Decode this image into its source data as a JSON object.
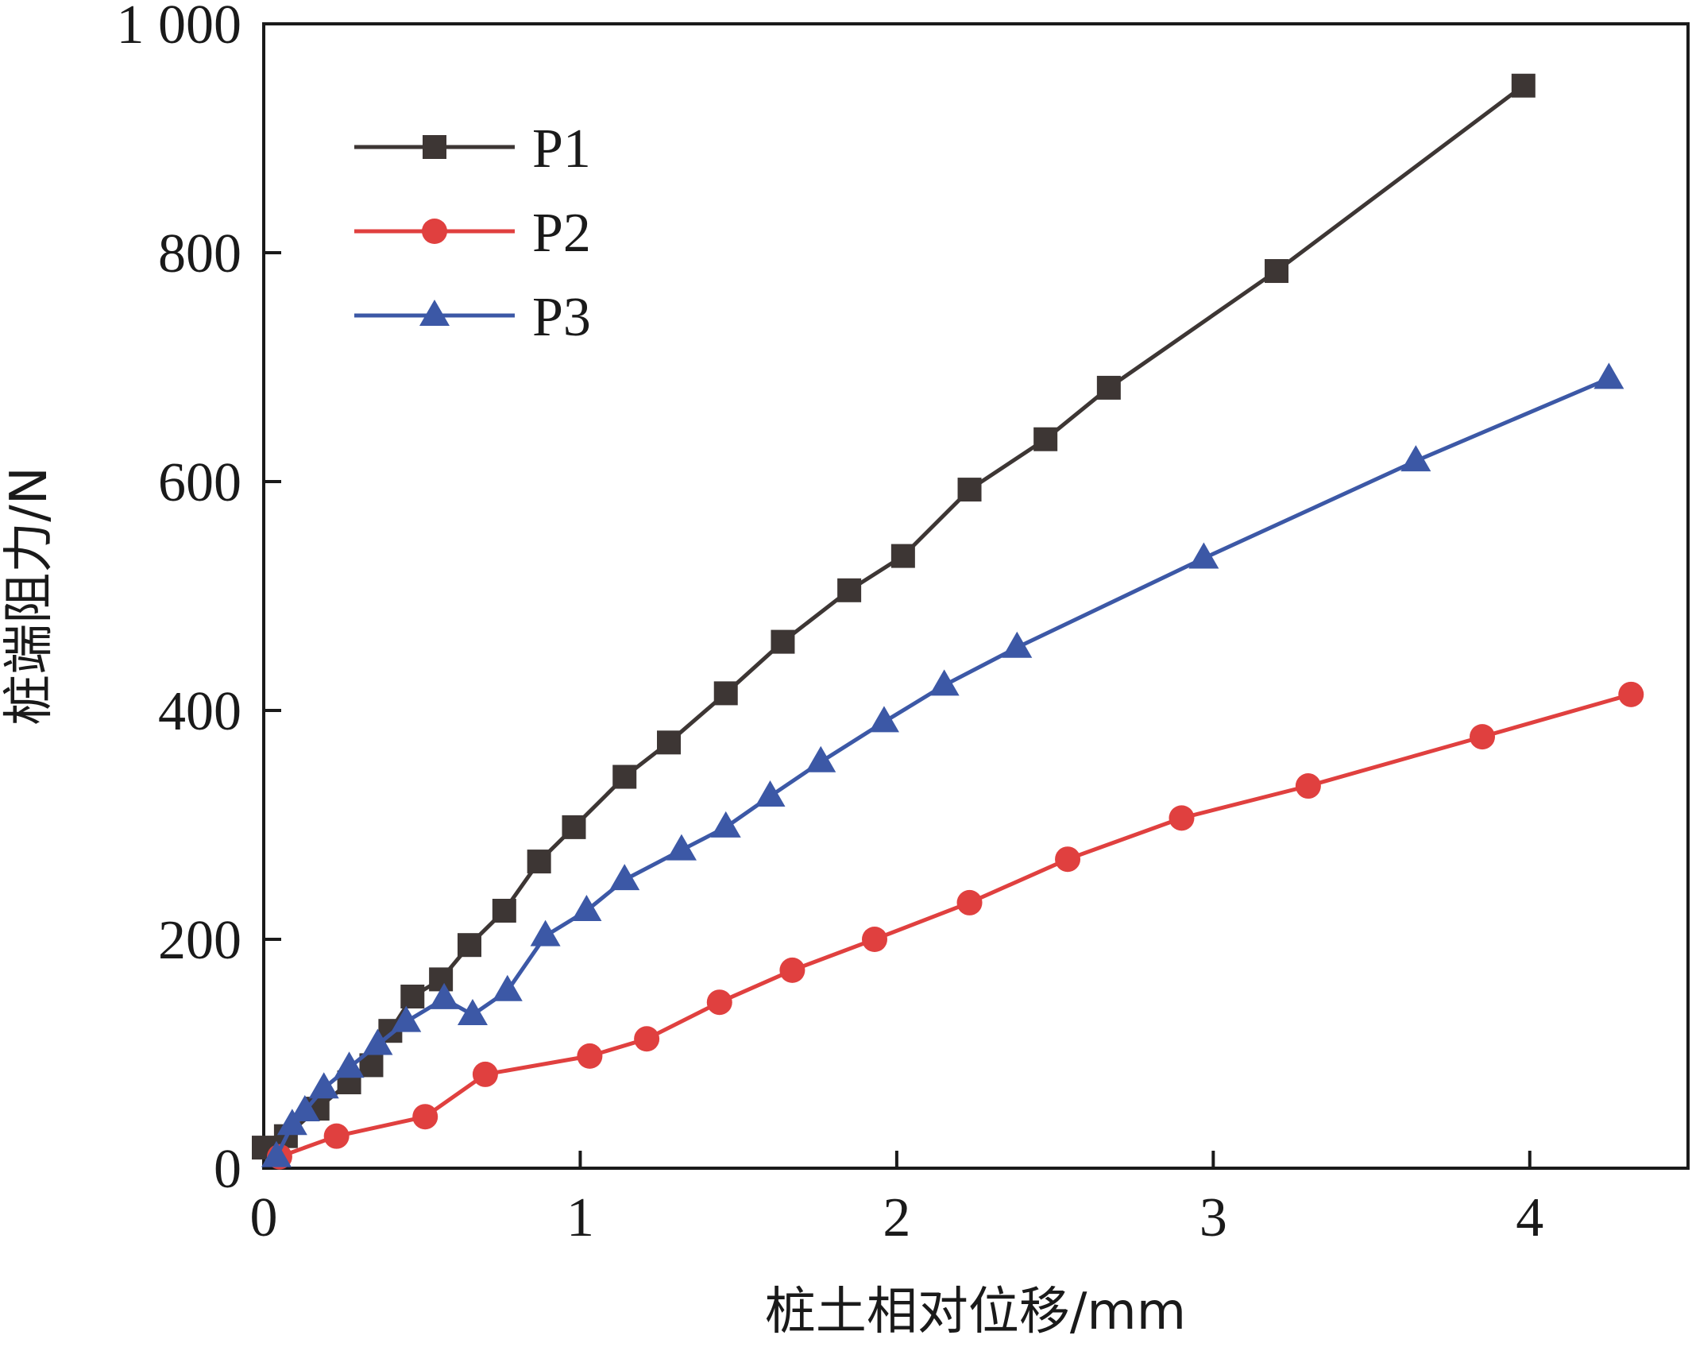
{
  "chart_data": {
    "type": "line",
    "title": "",
    "xlabel": "桩土相对位移/mm",
    "ylabel": "桩端阻力/N",
    "xlim": [
      0,
      4.5
    ],
    "ylim": [
      0,
      1000
    ],
    "x_ticks": [
      0,
      1,
      2,
      3,
      4
    ],
    "y_ticks": [
      0,
      200,
      400,
      600,
      800,
      1000
    ],
    "x_tick_labels": [
      "0",
      "1",
      "2",
      "3",
      "4"
    ],
    "y_tick_labels": [
      "0",
      "200",
      "400",
      "600",
      "800",
      "1 000"
    ],
    "grid": false,
    "legend_position": "top-left",
    "series": [
      {
        "name": "P1",
        "color": "#3d3634",
        "marker": "square",
        "x": [
          0.0,
          0.07,
          0.17,
          0.27,
          0.34,
          0.4,
          0.47,
          0.56,
          0.65,
          0.76,
          0.87,
          0.98,
          1.14,
          1.28,
          1.46,
          1.64,
          1.85,
          2.02,
          2.23,
          2.47,
          2.67,
          3.2,
          3.98
        ],
        "y": [
          18,
          28,
          52,
          75,
          90,
          120,
          150,
          165,
          195,
          225,
          268,
          298,
          342,
          372,
          415,
          460,
          505,
          535,
          593,
          637,
          682,
          784,
          946
        ]
      },
      {
        "name": "P2",
        "color": "#e0403f",
        "marker": "circle",
        "x": [
          0.05,
          0.23,
          0.51,
          0.7,
          1.03,
          1.21,
          1.44,
          1.67,
          1.93,
          2.23,
          2.54,
          2.9,
          3.3,
          3.85,
          4.32
        ],
        "y": [
          10,
          28,
          45,
          82,
          98,
          113,
          145,
          173,
          200,
          232,
          270,
          306,
          334,
          377,
          414
        ]
      },
      {
        "name": "P3",
        "color": "#3c58a6",
        "marker": "triangle",
        "x": [
          0.04,
          0.09,
          0.13,
          0.19,
          0.27,
          0.36,
          0.45,
          0.57,
          0.66,
          0.77,
          0.89,
          1.02,
          1.14,
          1.32,
          1.46,
          1.6,
          1.76,
          1.96,
          2.15,
          2.38,
          2.97,
          3.64,
          4.25
        ],
        "y": [
          10,
          38,
          50,
          70,
          88,
          108,
          128,
          148,
          134,
          155,
          203,
          225,
          252,
          278,
          298,
          325,
          355,
          390,
          422,
          455,
          533,
          618,
          690
        ]
      }
    ]
  }
}
